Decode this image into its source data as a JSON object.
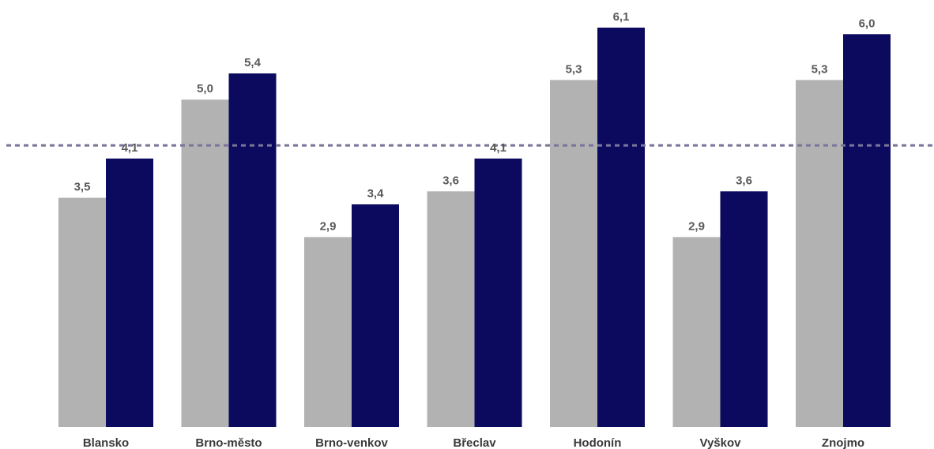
{
  "chart_data": {
    "type": "bar",
    "categories": [
      "Blansko",
      "Brno-město",
      "Brno-venkov",
      "Břeclav",
      "Hodonín",
      "Vyškov",
      "Znojmo"
    ],
    "series": [
      {
        "values": [
          3.5,
          5.0,
          2.9,
          3.6,
          5.3,
          2.9,
          5.3
        ],
        "color": "#b2b2b2"
      },
      {
        "values": [
          4.1,
          5.4,
          3.4,
          4.1,
          6.1,
          3.6,
          6.0
        ],
        "color": "#0c0a5e"
      }
    ],
    "value_labels": [
      [
        "3,5",
        "5,0",
        "2,9",
        "3,6",
        "5,3",
        "2,9",
        "5,3"
      ],
      [
        "4,1",
        "5,4",
        "3,4",
        "4,1",
        "6,1",
        "3,6",
        "6,0"
      ]
    ],
    "reference_line": {
      "value": 4.3,
      "style": "dashed",
      "color": "#7a7599"
    },
    "ylim": [
      0,
      6.1
    ],
    "grid": false,
    "legend": "none",
    "title": "",
    "xlabel": "",
    "ylabel": ""
  }
}
